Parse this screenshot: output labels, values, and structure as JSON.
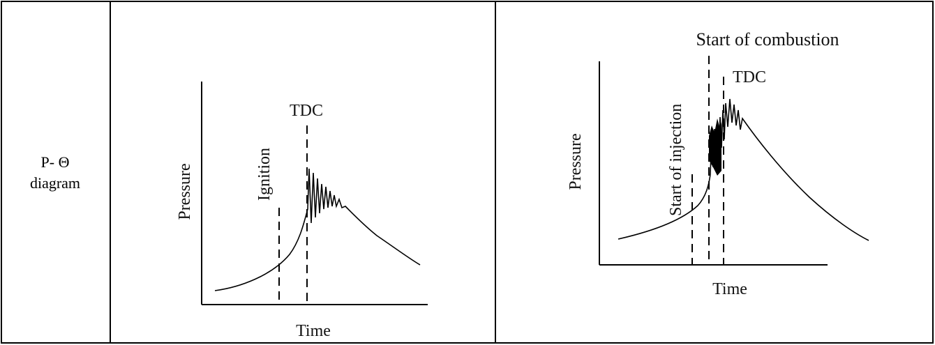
{
  "row_label": {
    "line1": "P- Θ",
    "line2": "diagram"
  },
  "left_diagram": {
    "xlabel": "Time",
    "ylabel": "Pressure",
    "markers": {
      "ignition": "Ignition",
      "tdc": "TDC"
    }
  },
  "right_diagram": {
    "xlabel": "Time",
    "ylabel": "Pressure",
    "markers": {
      "start_of_injection": "Start of injection",
      "start_of_combustion": "Start of combustion",
      "tdc": "TDC"
    }
  }
}
